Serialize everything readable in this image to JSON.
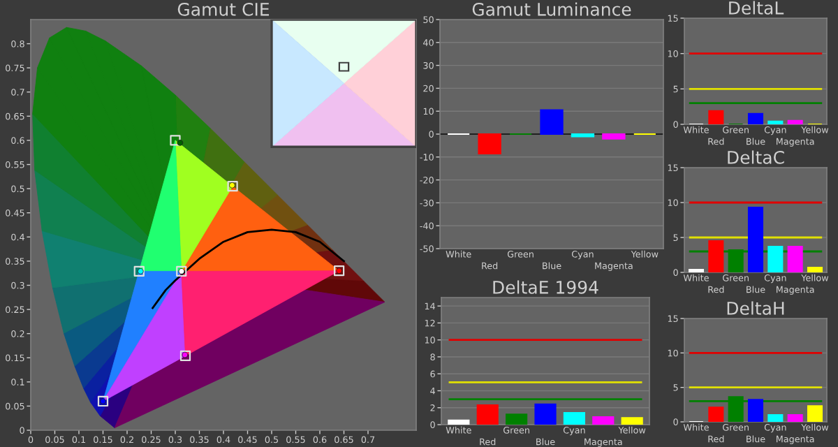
{
  "chart_data": [
    {
      "type": "scatter",
      "title": "Gamut CIE",
      "xlim": [
        0,
        0.8
      ],
      "ylim": [
        0,
        0.85
      ],
      "xticks": [
        0,
        0.05,
        0.1,
        0.15,
        0.2,
        0.25,
        0.3,
        0.35,
        0.4,
        0.45,
        0.5,
        0.55,
        0.6,
        0.65,
        0.7
      ],
      "yticks": [
        0,
        0.05,
        0.1,
        0.15,
        0.2,
        0.25,
        0.3,
        0.35,
        0.4,
        0.45,
        0.5,
        0.55,
        0.6,
        0.65,
        0.7,
        0.75,
        0.8
      ],
      "grid": false,
      "series": [
        {
          "type": "line",
          "color": "#000000",
          "marker": "none",
          "x": [
            0.253,
            0.28,
            0.3,
            0.35,
            0.4,
            0.45,
            0.5,
            0.55,
            0.6,
            0.65
          ],
          "values": [
            0.253,
            0.29,
            0.31,
            0.355,
            0.39,
            0.41,
            0.415,
            0.41,
            0.39,
            0.35
          ]
        },
        {
          "type": "scatter",
          "marker": "square",
          "color": "#e0e0e0",
          "x": [
            0.3127,
            0.64,
            0.3,
            0.15,
            0.225,
            0.321,
            0.419
          ],
          "values": [
            0.329,
            0.33,
            0.6,
            0.06,
            0.329,
            0.154,
            0.505
          ]
        },
        {
          "type": "scatter",
          "marker": "circle",
          "colors": [
            "#ffffff",
            "#ff0000",
            "#006000",
            "#0000ff",
            "#00ffff",
            "#ff00ff",
            "#ffff00"
          ],
          "x": [
            0.313,
            0.64,
            0.31,
            0.15,
            0.228,
            0.32,
            0.418
          ],
          "values": [
            0.329,
            0.33,
            0.595,
            0.06,
            0.329,
            0.156,
            0.507
          ]
        }
      ]
    },
    {
      "type": "bar",
      "title": "Gamut Luminance",
      "categories": [
        "White",
        "Red",
        "Green",
        "Blue",
        "Cyan",
        "Magenta",
        "Yellow"
      ],
      "colors": [
        "#ffffff",
        "#ff0000",
        "#008000",
        "#0000ff",
        "#00ffff",
        "#ff00ff",
        "#ffff00"
      ],
      "values": [
        0,
        -8.5,
        0,
        10.5,
        -1,
        -2,
        0
      ],
      "ylim": [
        -50,
        50
      ],
      "yticks": [
        -50,
        -40,
        -30,
        -20,
        -10,
        0,
        10,
        20,
        30,
        40,
        50
      ],
      "grid": "y"
    },
    {
      "type": "bar",
      "title": "DeltaE 1994",
      "categories": [
        "White",
        "Red",
        "Green",
        "Blue",
        "Cyan",
        "Magenta",
        "Yellow"
      ],
      "colors": [
        "#ffffff",
        "#ff0000",
        "#008000",
        "#0000ff",
        "#00ffff",
        "#ff00ff",
        "#ffff00"
      ],
      "values": [
        0.5,
        2.3,
        1.2,
        2.4,
        1.4,
        0.9,
        0.8
      ],
      "ylim": [
        0,
        15
      ],
      "yticks": [
        0,
        2,
        4,
        6,
        8,
        10,
        12,
        14
      ],
      "grid": "y",
      "ref_lines": [
        {
          "axis": "y",
          "value": 10,
          "color": "#e00000"
        },
        {
          "axis": "y",
          "value": 5,
          "color": "#e0e000"
        },
        {
          "axis": "y",
          "value": 3,
          "color": "#008000"
        }
      ]
    },
    {
      "type": "bar",
      "title": "DeltaL",
      "categories": [
        "White",
        "Red",
        "Green",
        "Blue",
        "Cyan",
        "Magenta",
        "Yellow"
      ],
      "colors": [
        "#ffffff",
        "#ff0000",
        "#008000",
        "#0000ff",
        "#00ffff",
        "#ff00ff",
        "#ffff00"
      ],
      "values": [
        0,
        1.9,
        0,
        1.5,
        0.4,
        0.5,
        0
      ],
      "ylim": [
        0,
        15
      ],
      "yticks": [
        0,
        5,
        10,
        15
      ],
      "grid": "y",
      "ref_lines": [
        {
          "axis": "y",
          "value": 10,
          "color": "#e00000"
        },
        {
          "axis": "y",
          "value": 5,
          "color": "#e0e000"
        },
        {
          "axis": "y",
          "value": 3,
          "color": "#008000"
        }
      ]
    },
    {
      "type": "bar",
      "title": "DeltaC",
      "categories": [
        "White",
        "Red",
        "Green",
        "Blue",
        "Cyan",
        "Magenta",
        "Yellow"
      ],
      "colors": [
        "#ffffff",
        "#ff0000",
        "#008000",
        "#0000ff",
        "#00ffff",
        "#ff00ff",
        "#ffff00"
      ],
      "values": [
        0.4,
        4.5,
        3.2,
        9.3,
        3.7,
        3.7,
        0.7
      ],
      "ylim": [
        0,
        15
      ],
      "yticks": [
        0,
        5,
        10,
        15
      ],
      "grid": "y",
      "ref_lines": [
        {
          "axis": "y",
          "value": 10,
          "color": "#e00000"
        },
        {
          "axis": "y",
          "value": 5,
          "color": "#e0e000"
        },
        {
          "axis": "y",
          "value": 3,
          "color": "#008000"
        }
      ]
    },
    {
      "type": "bar",
      "title": "DeltaH",
      "categories": [
        "White",
        "Red",
        "Green",
        "Blue",
        "Cyan",
        "Magenta",
        "Yellow"
      ],
      "colors": [
        "#ffffff",
        "#ff0000",
        "#008000",
        "#0000ff",
        "#00ffff",
        "#ff00ff",
        "#ffff00"
      ],
      "values": [
        0,
        2.1,
        3.6,
        3.2,
        1.0,
        1.0,
        2.3
      ],
      "ylim": [
        0,
        15
      ],
      "yticks": [
        0,
        5,
        10,
        15
      ],
      "grid": "y",
      "ref_lines": [
        {
          "axis": "y",
          "value": 10,
          "color": "#e00000"
        },
        {
          "axis": "y",
          "value": 5,
          "color": "#e0e000"
        },
        {
          "axis": "y",
          "value": 3,
          "color": "#008000"
        }
      ]
    }
  ]
}
